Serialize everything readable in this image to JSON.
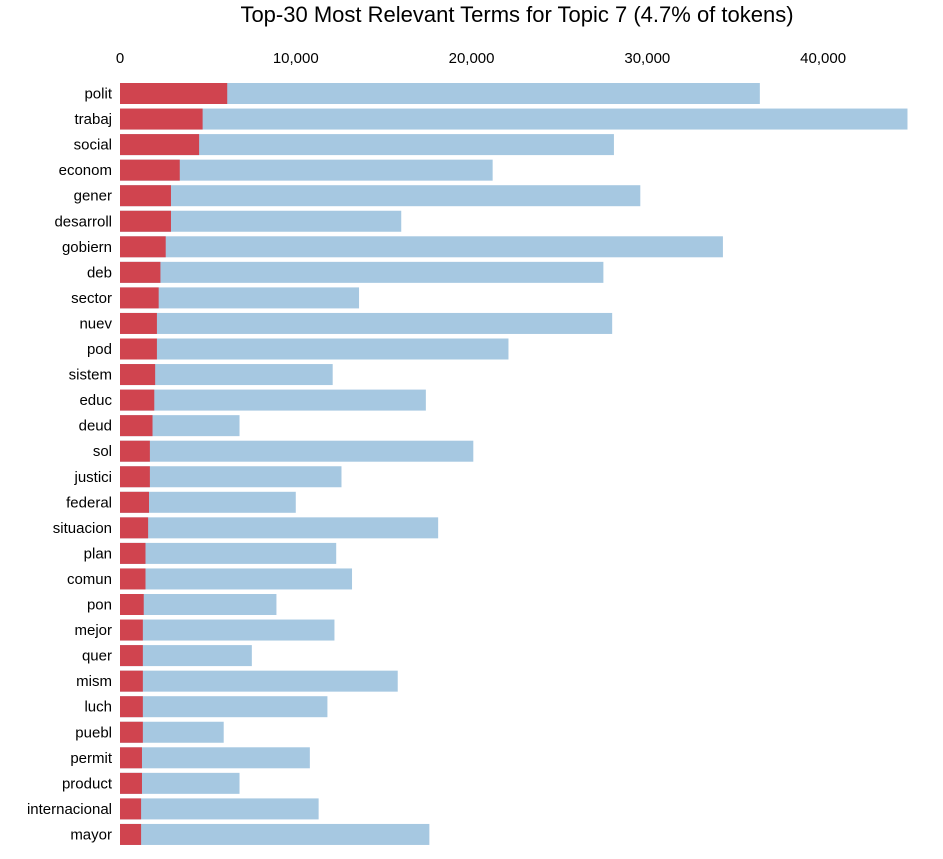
{
  "chart_data": {
    "type": "bar",
    "orientation": "horizontal",
    "title": "Top-30 Most Relevant Terms for Topic 7 (4.7% of tokens)",
    "xlabel": "",
    "ylabel": "",
    "xlim": [
      0,
      45000
    ],
    "x_ticks": [
      0,
      10000,
      20000,
      30000,
      40000
    ],
    "x_tick_labels": [
      "0",
      "10,000",
      "20,000",
      "30,000",
      "40,000"
    ],
    "x_axis_position": "top",
    "grid": false,
    "legend": "none",
    "stacking": "overlay",
    "categories": [
      "polit",
      "trabaj",
      "social",
      "econom",
      "gener",
      "desarroll",
      "gobiern",
      "deb",
      "sector",
      "nuev",
      "pod",
      "sistem",
      "educ",
      "deud",
      "sol",
      "justici",
      "federal",
      "situacion",
      "plan",
      "comun",
      "pon",
      "mejor",
      "quer",
      "mism",
      "luch",
      "puebl",
      "permit",
      "product",
      "internacional",
      "mayor"
    ],
    "series": [
      {
        "color": "#a6c8e1",
        "values": [
          36400,
          44800,
          28100,
          21200,
          29600,
          16000,
          34300,
          27500,
          13600,
          28000,
          22100,
          12100,
          17400,
          6800,
          20100,
          12600,
          10000,
          18100,
          12300,
          13200,
          8900,
          12200,
          7500,
          15800,
          11800,
          5900,
          10800,
          6800,
          11300,
          17600
        ]
      },
      {
        "color": "#d0444f",
        "values": [
          6100,
          4700,
          4500,
          3400,
          2900,
          2900,
          2600,
          2300,
          2200,
          2100,
          2100,
          2000,
          1950,
          1850,
          1700,
          1700,
          1650,
          1600,
          1450,
          1450,
          1350,
          1300,
          1300,
          1300,
          1300,
          1300,
          1250,
          1250,
          1200,
          1200
        ]
      }
    ]
  }
}
